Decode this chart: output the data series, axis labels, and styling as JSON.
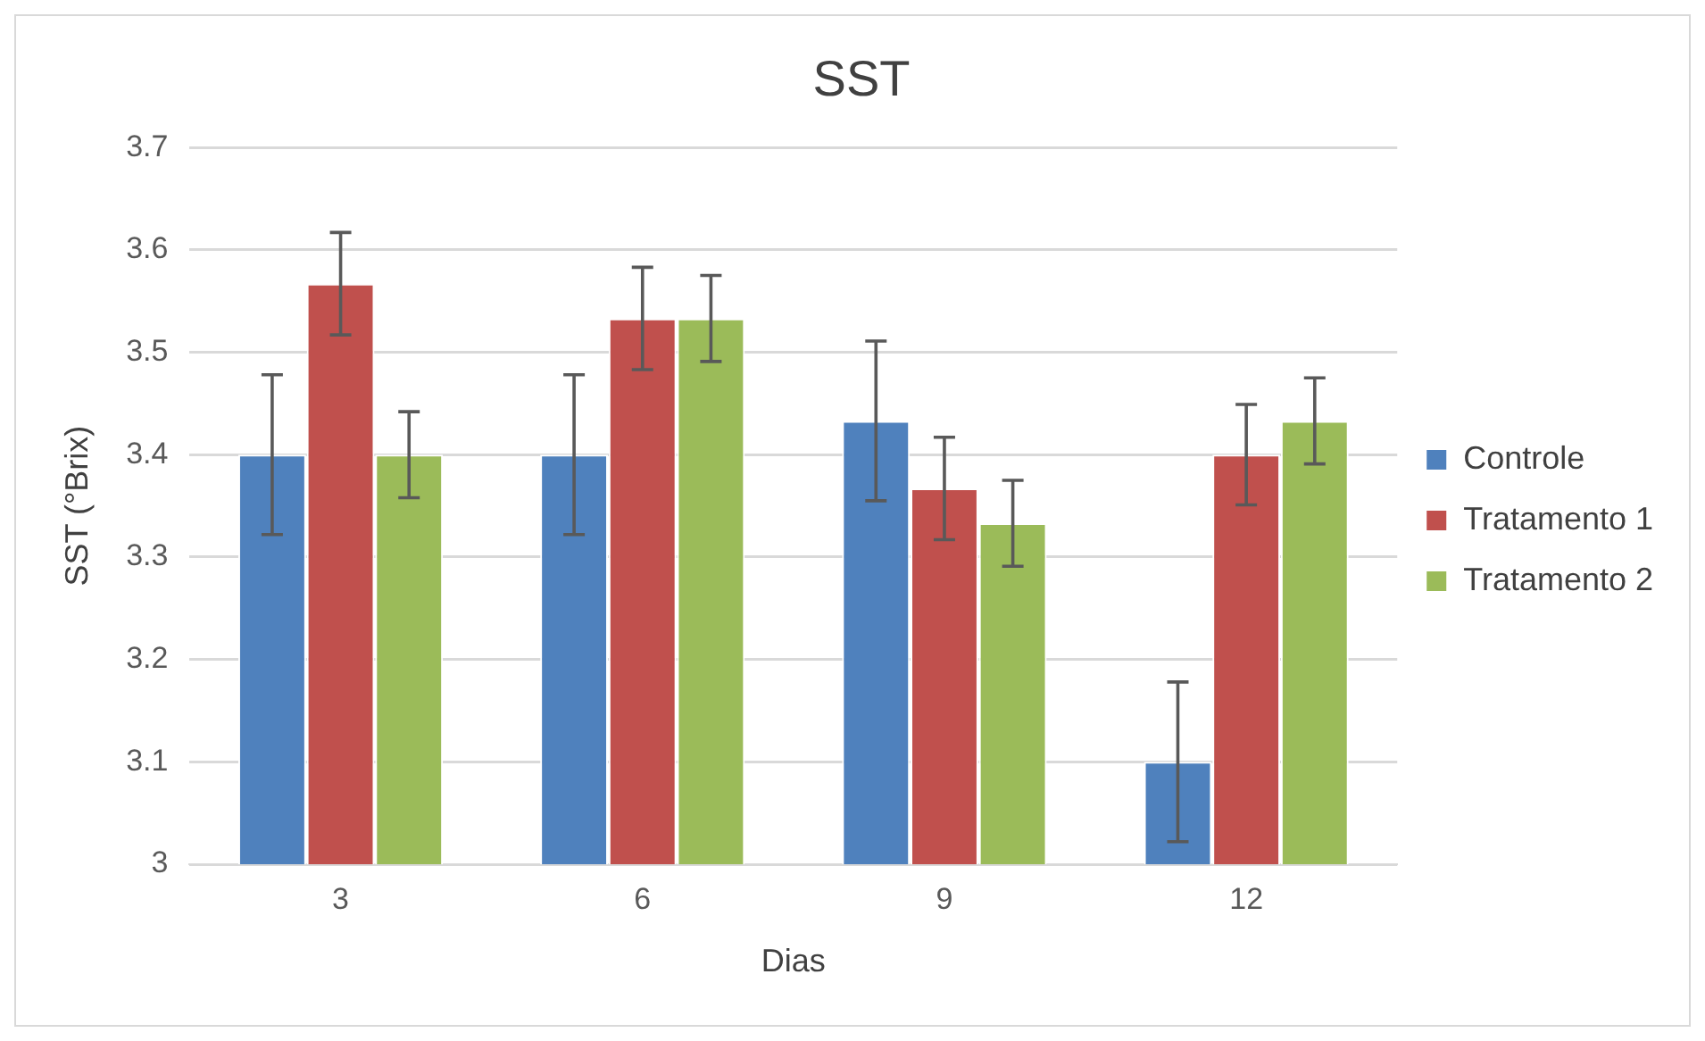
{
  "chart_data": {
    "type": "bar",
    "title": "SST",
    "xlabel": "Dias",
    "ylabel": "SST (°Brix)",
    "categories": [
      "3",
      "6",
      "9",
      "12"
    ],
    "series": [
      {
        "name": "Controle",
        "color": "#4f81bd",
        "values": [
          3.4,
          3.4,
          3.433,
          3.1
        ],
        "errors": [
          0.078,
          0.078,
          0.078,
          0.078
        ]
      },
      {
        "name": "Tratamento 1",
        "color": "#c0504d",
        "values": [
          3.567,
          3.533,
          3.367,
          3.4
        ],
        "errors": [
          0.05,
          0.05,
          0.05,
          0.049
        ]
      },
      {
        "name": "Tratamento 2",
        "color": "#9bbb59",
        "values": [
          3.4,
          3.533,
          3.333,
          3.433
        ],
        "errors": [
          0.042,
          0.042,
          0.042,
          0.042
        ]
      }
    ],
    "ylim": [
      3,
      3.7
    ],
    "yticks": [
      3,
      3.1,
      3.2,
      3.3,
      3.4,
      3.5,
      3.6,
      3.7
    ],
    "grid": "y",
    "legend": "right"
  }
}
